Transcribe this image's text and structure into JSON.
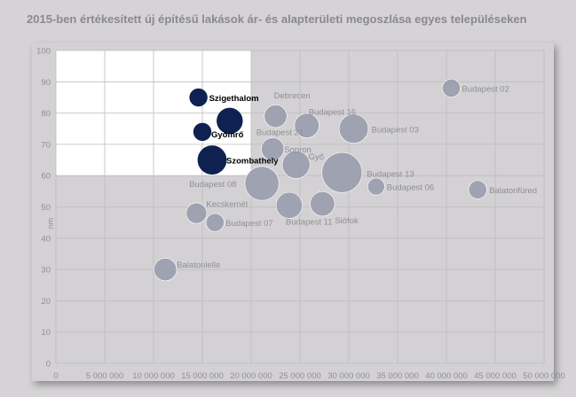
{
  "title": "2015-ben értékesített új építésű lakások ár- és alapterületi megoszlása egyes településeken",
  "colors": {
    "background": "#d5d3d5",
    "plot_area": "#d3d1d3",
    "inset": "#ffffff",
    "highlight": "#0e2150",
    "muted": "#9a9dad",
    "grid": "#bdbcbe",
    "label": "#8f8f93",
    "label_dark": "#000000"
  },
  "chart_data": {
    "type": "scatter",
    "title": "2015-ben értékesített új építésű lakások ár- és alapterületi megoszlása egyes településeken",
    "xlabel": "",
    "ylabel": "nm",
    "xlim": [
      0,
      50000000
    ],
    "ylim": [
      0,
      100
    ],
    "x_ticks": [
      0,
      5000000,
      10000000,
      15000000,
      20000000,
      25000000,
      30000000,
      35000000,
      40000000,
      45000000,
      50000000
    ],
    "x_tick_labels": [
      "0",
      "5 000 000",
      "10 000 000",
      "15 000 000",
      "20 000 000",
      "25 000 000",
      "30 000 000",
      "35 000 000",
      "40 000 000",
      "45 000 000",
      "50 000 000"
    ],
    "y_ticks": [
      0,
      10,
      20,
      30,
      40,
      50,
      60,
      70,
      80,
      90,
      100
    ],
    "y_tick_labels": [
      "0",
      "10",
      "20",
      "30",
      "40",
      "50",
      "60",
      "70",
      "80",
      "90",
      "100"
    ],
    "grid": true,
    "inset_region": {
      "x": [
        0,
        20000000
      ],
      "y": [
        60,
        100
      ]
    },
    "points": [
      {
        "label": "Szigethalom",
        "x": 14600000,
        "y": 85,
        "size": 1,
        "highlight": true
      },
      {
        "label": "Gyömrő",
        "x": 15000000,
        "y": 74,
        "size": 1,
        "highlight": true
      },
      {
        "label": "",
        "x": 17800000,
        "y": 77.5,
        "size": 3,
        "highlight": true
      },
      {
        "label": "Szombathely",
        "x": 16000000,
        "y": 65,
        "size": 4,
        "highlight": true
      },
      {
        "label": "Debrecen",
        "x": 22500000,
        "y": 79,
        "size": 2,
        "highlight": false
      },
      {
        "label": "Budapest 21",
        "x": 25700000,
        "y": 76,
        "size": 2.5,
        "highlight": false
      },
      {
        "label": "Budapest 16",
        "x": 25700000,
        "y": 76,
        "size": 0,
        "highlight": false
      },
      {
        "label": "Budapest 03",
        "x": 30500000,
        "y": 75,
        "size": 4,
        "highlight": false
      },
      {
        "label": "Budapest 02",
        "x": 40500000,
        "y": 88,
        "size": 1,
        "highlight": false
      },
      {
        "label": "Sopron",
        "x": 22200000,
        "y": 68.5,
        "size": 2,
        "highlight": false
      },
      {
        "label": "Győ",
        "x": 24600000,
        "y": 63.5,
        "size": 3.5,
        "highlight": false
      },
      {
        "label": "Budapest 13",
        "x": 29300000,
        "y": 61,
        "size": 9,
        "highlight": false
      },
      {
        "label": "Budapest 08",
        "x": 21100000,
        "y": 57.5,
        "size": 6,
        "highlight": false
      },
      {
        "label": "Budapest 06",
        "x": 32800000,
        "y": 56.5,
        "size": 0.8,
        "highlight": false
      },
      {
        "label": "Balatonfüred",
        "x": 43200000,
        "y": 55.5,
        "size": 1,
        "highlight": false
      },
      {
        "label": "Kecskemét",
        "x": 14400000,
        "y": 48,
        "size": 1.5,
        "highlight": false
      },
      {
        "label": "Budapest 07",
        "x": 16300000,
        "y": 45,
        "size": 1,
        "highlight": false
      },
      {
        "label": "",
        "x": 23900000,
        "y": 50.5,
        "size": 3,
        "highlight": false
      },
      {
        "label": "Budapest 11",
        "x": 23900000,
        "y": 50.5,
        "size": 0,
        "highlight": false
      },
      {
        "label": "Siófok",
        "x": 27300000,
        "y": 51,
        "size": 2.5,
        "highlight": false
      },
      {
        "label": "Balatonlelle",
        "x": 11200000,
        "y": 30,
        "size": 2,
        "highlight": false
      }
    ]
  }
}
